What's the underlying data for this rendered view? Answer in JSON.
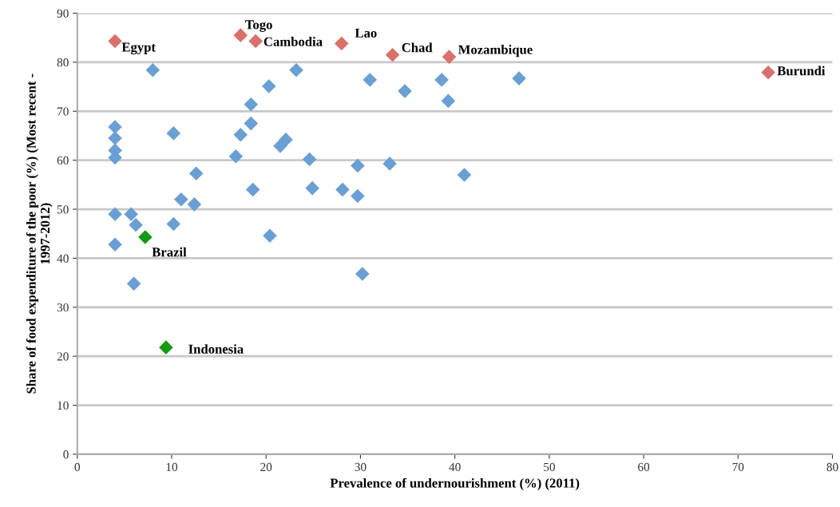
{
  "chart_data": {
    "type": "scatter",
    "xlabel": "Prevalence of undernourishment (%) (2011)",
    "ylabel": "Share of food expenditure of the poor (%) (Most recent -\n1997-2012)",
    "xlim": [
      0,
      80
    ],
    "xticks": [
      0,
      10,
      20,
      30,
      40,
      50,
      60,
      70,
      80
    ],
    "ylim": [
      0,
      90
    ],
    "yticks": [
      0,
      10,
      20,
      30,
      40,
      50,
      60,
      70,
      80,
      90
    ],
    "grid": "y",
    "marker": "diamond",
    "series": [
      {
        "color": "#6a9fd4",
        "x": [
          4,
          4,
          4,
          4,
          4,
          4,
          5.7,
          6.2,
          6,
          8,
          10.2,
          10.2,
          11,
          12.4,
          12.6,
          16.8,
          17.3,
          18.4,
          18.4,
          18.6,
          20.3,
          20.4,
          21.5,
          22.1,
          23.2,
          24.6,
          24.9,
          28.1,
          29.7,
          29.7,
          30.2,
          31,
          33.1,
          34.7,
          38.6,
          39.3,
          41,
          46.8
        ],
        "values": [
          66.8,
          64.5,
          62,
          60.5,
          49,
          42.8,
          49,
          46.8,
          34.8,
          78.4,
          65.5,
          47,
          52,
          51,
          57.3,
          60.8,
          65.2,
          71.4,
          67.5,
          54,
          75.1,
          44.6,
          62.9,
          64.2,
          78.4,
          60.2,
          54.3,
          54,
          58.9,
          52.7,
          36.8,
          76.4,
          59.3,
          74.1,
          76.4,
          72.1,
          57,
          76.7
        ]
      },
      {
        "color": "#d9706a",
        "x": [
          4,
          17.3,
          18.9,
          28,
          33.4,
          39.4,
          73.2
        ],
        "values": [
          84.3,
          85.5,
          84.3,
          83.8,
          81.5,
          81.1,
          77.9
        ]
      },
      {
        "color": "#159a15",
        "x": [
          7.2,
          9.4
        ],
        "values": [
          44.3,
          21.8
        ]
      }
    ],
    "annotations": [
      {
        "text": "Egypt",
        "x": 4,
        "y": 84.3
      },
      {
        "text": "Togo",
        "x": 17.3,
        "y": 85.5
      },
      {
        "text": "Cambodia",
        "x": 18.9,
        "y": 84.3
      },
      {
        "text": "Lao",
        "x": 28,
        "y": 83.8
      },
      {
        "text": "Chad",
        "x": 33.4,
        "y": 81.5
      },
      {
        "text": "Mozambique",
        "x": 39.4,
        "y": 81.1
      },
      {
        "text": "Burundi",
        "x": 73.2,
        "y": 77.9
      },
      {
        "text": "Brazil",
        "x": 7.2,
        "y": 44.3
      },
      {
        "text": "Indonesia",
        "x": 9.4,
        "y": 21.8
      }
    ]
  }
}
